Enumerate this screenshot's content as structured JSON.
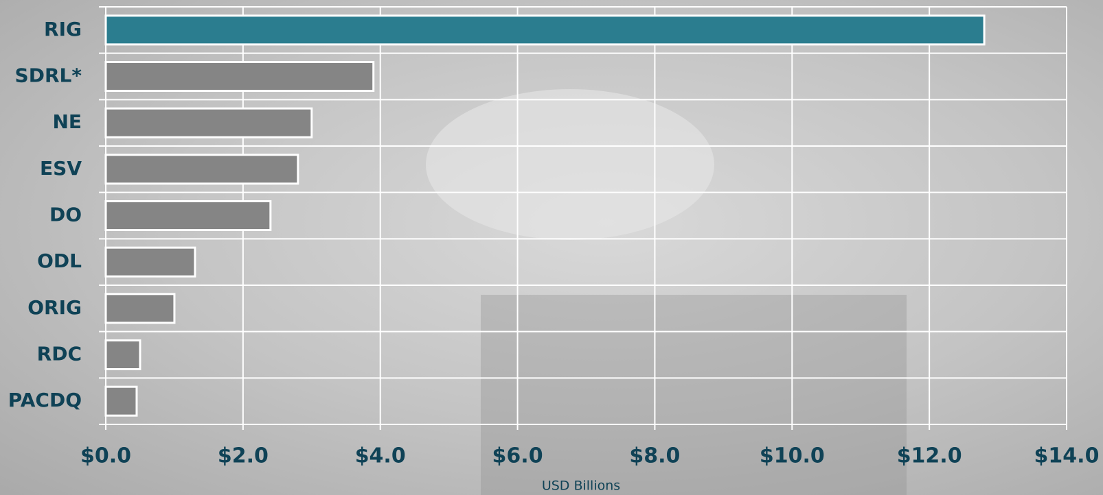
{
  "chart_data": {
    "type": "hbar",
    "categories": [
      "RIG",
      "SDRL*",
      "NE",
      "ESV",
      "DO",
      "ODL",
      "ORIG",
      "RDC",
      "PACDQ"
    ],
    "values": [
      12.8,
      3.9,
      3.0,
      2.8,
      2.4,
      1.3,
      1.0,
      0.5,
      0.45
    ],
    "colors": [
      "#2b7d8f",
      "#858585",
      "#858585",
      "#858585",
      "#858585",
      "#858585",
      "#858585",
      "#858585",
      "#858585"
    ],
    "xlabel": "USD Billions",
    "xlim": [
      0,
      14
    ],
    "xticks": [
      {
        "value": 0,
        "label": "$0.0"
      },
      {
        "value": 2,
        "label": "$2.0"
      },
      {
        "value": 4,
        "label": "$4.0"
      },
      {
        "value": 6,
        "label": "$6.0"
      },
      {
        "value": 8,
        "label": "$8.0"
      },
      {
        "value": 10,
        "label": "$10.0"
      },
      {
        "value": 12,
        "label": "$12.0"
      },
      {
        "value": 14,
        "label": "$14.0"
      }
    ],
    "grid": true
  }
}
